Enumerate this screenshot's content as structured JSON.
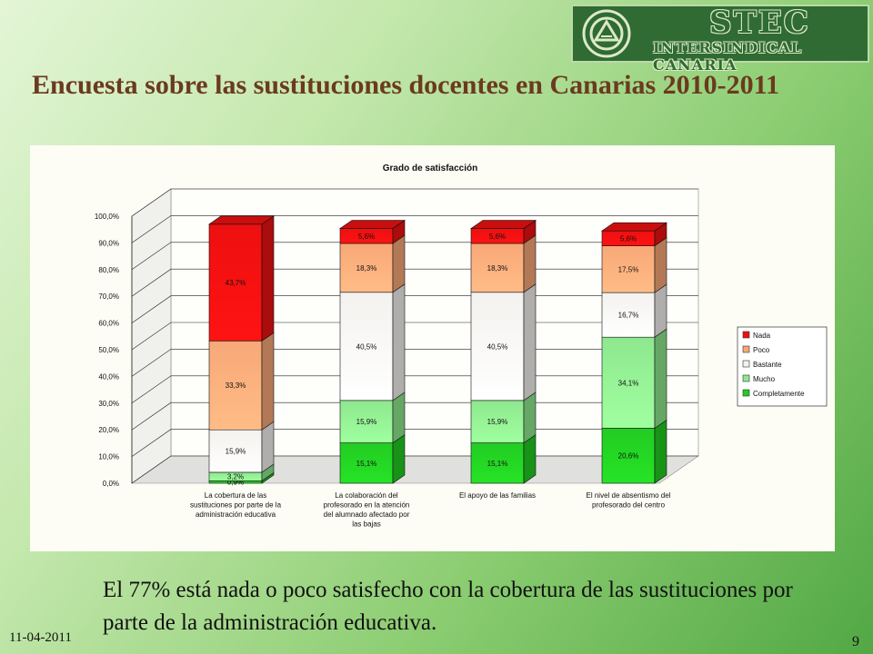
{
  "header": {
    "logo_main": "STEC",
    "logo_sub": "INTERSINDICAL CANARIA",
    "title": "Encuesta sobre las sustituciones docentes en Canarias 2010-2011"
  },
  "chart_data": {
    "type": "bar",
    "stacked": true,
    "three_d": true,
    "title": "Grado de satisfacción",
    "categories": [
      [
        "La cobertura de las",
        "sustituciones por parte de la",
        "administración educativa"
      ],
      [
        "La colaboración del",
        "profesorado en la atención",
        "del alumnado afectado por",
        "las bajas"
      ],
      [
        "El apoyo de las familias"
      ],
      [
        "El nivel de absentismo del",
        "profesorado del centro"
      ]
    ],
    "ylim": [
      0,
      100
    ],
    "yticks": [
      "0,0%",
      "10,0%",
      "20,0%",
      "30,0%",
      "40,0%",
      "50,0%",
      "60,0%",
      "70,0%",
      "80,0%",
      "90,0%",
      "100,0%"
    ],
    "series": [
      {
        "name": "Completamente",
        "color": "#22cc22",
        "values": [
          0.9,
          15.1,
          15.1,
          20.6
        ],
        "labels": [
          "0,9%",
          "15,1%",
          "15,1%",
          "20,6%"
        ]
      },
      {
        "name": "Mucho",
        "color": "#8ee88e",
        "values": [
          3.2,
          15.9,
          15.9,
          34.1
        ],
        "labels": [
          "3,2%",
          "15,9%",
          "15,9%",
          "34,1%"
        ]
      },
      {
        "name": "Bastante",
        "color": "#f4f2ef",
        "values": [
          15.9,
          40.5,
          40.5,
          16.7
        ],
        "labels": [
          "15,9%",
          "40,5%",
          "40,5%",
          "16,7%"
        ]
      },
      {
        "name": "Poco",
        "color": "#f8a878",
        "values": [
          33.3,
          18.3,
          18.3,
          17.5
        ],
        "labels": [
          "33,3%",
          "18,3%",
          "18,3%",
          "17,5%"
        ]
      },
      {
        "name": "Nada",
        "color": "#ee1010",
        "values": [
          43.7,
          5.6,
          5.6,
          5.6
        ],
        "labels": [
          "43,7%",
          "5,6%",
          "5,6%",
          "5,6%"
        ]
      }
    ],
    "legend_order": [
      "Nada",
      "Poco",
      "Bastante",
      "Mucho",
      "Completamente"
    ],
    "legend_position": "right",
    "grid": true
  },
  "caption": "El 77% está nada o poco satisfecho con la cobertura de las sustituciones por parte de la administración educativa.",
  "footer": {
    "date": "11-04-2011",
    "page": "9"
  }
}
